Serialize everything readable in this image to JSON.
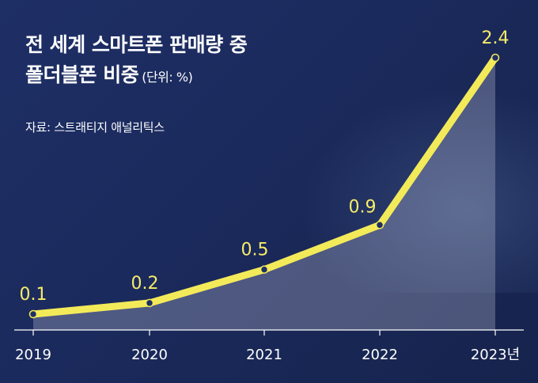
{
  "title": {
    "line1": "전 세계 스마트폰 판매량 중",
    "line2": "폴더블폰 비중",
    "unit": "(단위: %)"
  },
  "source": "자료: 스트래티지 애널리틱스",
  "colors": {
    "line": "#f3ea5a",
    "marker": "#1e2f66",
    "area": "rgba(215,215,235,0.28)",
    "axis": "#ffffff"
  },
  "chart_data": {
    "type": "line",
    "categories": [
      "2019",
      "2020",
      "2021",
      "2022",
      "2023년"
    ],
    "series": [
      {
        "values": [
          0.1,
          0.2,
          0.5,
          0.9,
          2.4
        ]
      }
    ],
    "value_labels": [
      "0.1",
      "0.2",
      "0.5",
      "0.9",
      "2.4"
    ],
    "title": "전 세계 스마트폰 판매량 중 폴더블폰 비중",
    "ylabel": "(단위: %)",
    "ylim": [
      0,
      2.4
    ],
    "grid": false,
    "area_fill": true
  }
}
